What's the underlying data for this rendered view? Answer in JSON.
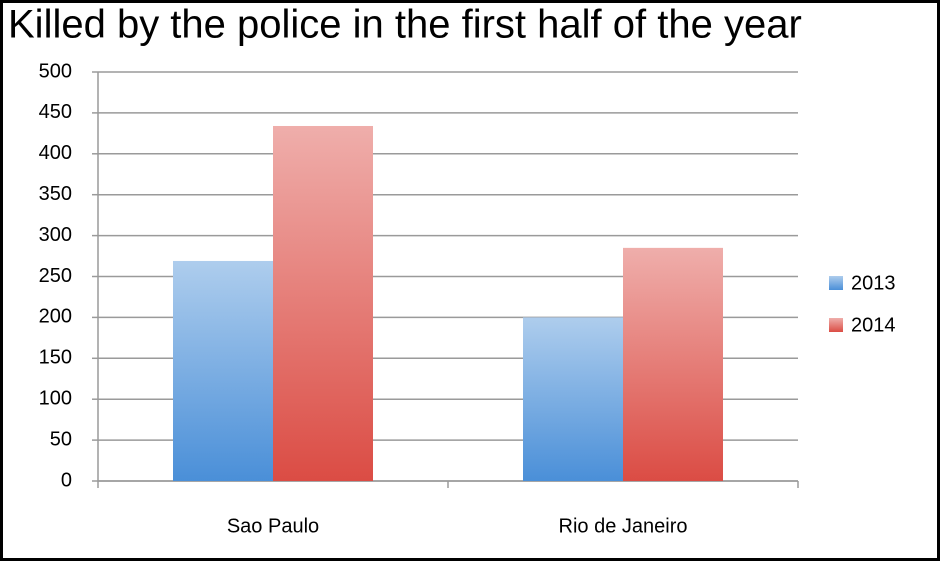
{
  "chart_data": {
    "type": "bar",
    "title": "Killed by the police in the first half of the year",
    "categories": [
      "Sao Paulo",
      "Rio de Janeiro"
    ],
    "series": [
      {
        "name": "2013",
        "color": "#4a8fd8",
        "values": [
          269,
          200
        ]
      },
      {
        "name": "2014",
        "color": "#db4c44",
        "values": [
          434,
          285
        ]
      }
    ],
    "ylim": [
      0,
      500
    ],
    "yticks": [
      0,
      50,
      100,
      150,
      200,
      250,
      300,
      350,
      400,
      450,
      500
    ],
    "grid": true,
    "legend": "right"
  }
}
